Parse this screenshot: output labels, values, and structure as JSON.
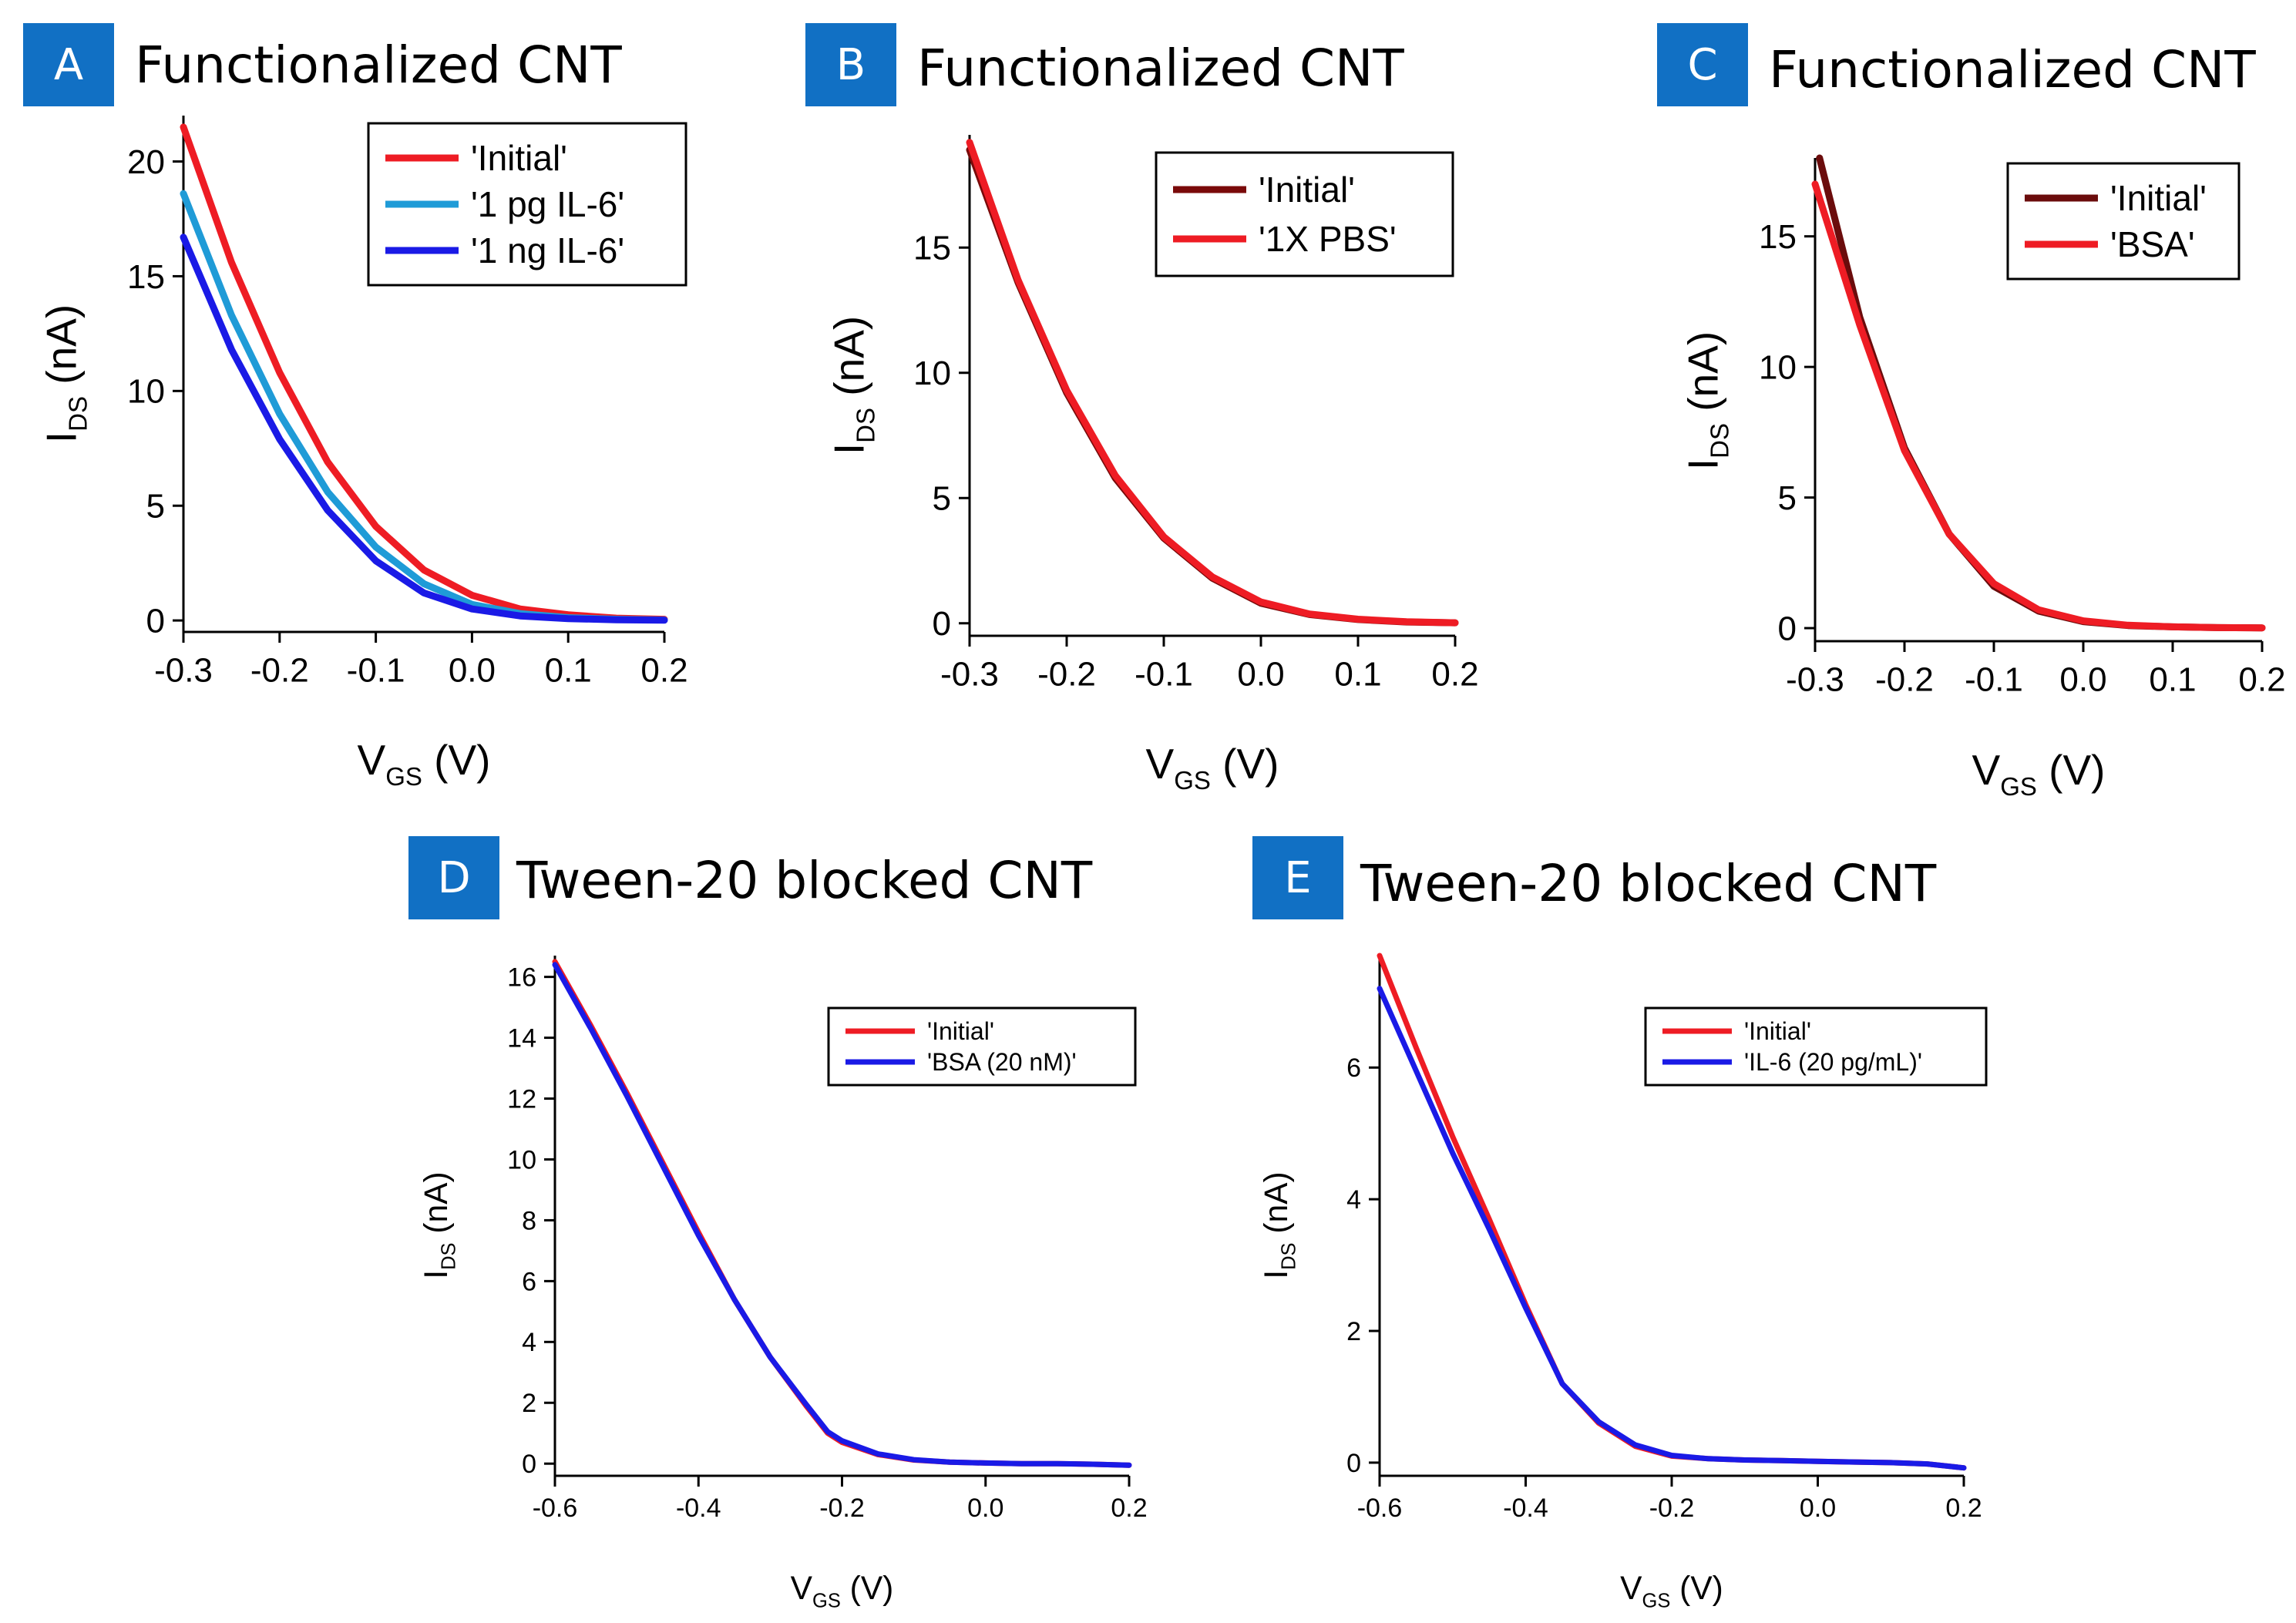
{
  "chart_data": [
    {
      "id": "A",
      "type": "line",
      "badge": "A",
      "title": "Functionalized CNT",
      "xlabel_main": "V",
      "xlabel_sub": "GS",
      "xlabel_unit": " (V)",
      "ylabel_main": "I",
      "ylabel_sub": "DS",
      "ylabel_unit": " (nA)",
      "xlim": [
        -0.3,
        0.2
      ],
      "ylim": [
        -0.5,
        22
      ],
      "xticks": [
        -0.3,
        -0.2,
        -0.1,
        0.0,
        0.1,
        0.2
      ],
      "xtick_labels": [
        "-0.3",
        "-0.2",
        "-0.1",
        "0.0",
        "0.1",
        "0.2"
      ],
      "yticks": [
        0,
        5,
        10,
        15,
        20
      ],
      "ytick_labels": [
        "0",
        "5",
        "10",
        "15",
        "20"
      ],
      "legend_position": "top-right",
      "series": [
        {
          "name": "'Initial'",
          "color": "#ee1c24",
          "x": [
            -0.3,
            -0.25,
            -0.2,
            -0.15,
            -0.1,
            -0.05,
            0.0,
            0.05,
            0.1,
            0.15,
            0.2
          ],
          "y": [
            21.5,
            15.6,
            10.8,
            6.9,
            4.1,
            2.2,
            1.1,
            0.5,
            0.25,
            0.1,
            0.05
          ]
        },
        {
          "name": "'1 pg IL-6'",
          "color": "#1f9bd7",
          "x": [
            -0.3,
            -0.25,
            -0.2,
            -0.15,
            -0.1,
            -0.05,
            0.0,
            0.05,
            0.1,
            0.15,
            0.2
          ],
          "y": [
            18.6,
            13.3,
            9.0,
            5.6,
            3.2,
            1.6,
            0.7,
            0.3,
            0.12,
            0.05,
            0.02
          ]
        },
        {
          "name": "'1 ng IL-6'",
          "color": "#1a1ae6",
          "x": [
            -0.3,
            -0.25,
            -0.2,
            -0.15,
            -0.1,
            -0.05,
            0.0,
            0.05,
            0.1,
            0.15,
            0.2
          ],
          "y": [
            16.7,
            11.8,
            7.9,
            4.8,
            2.6,
            1.2,
            0.5,
            0.2,
            0.08,
            0.03,
            0.01
          ]
        }
      ]
    },
    {
      "id": "B",
      "type": "line",
      "badge": "B",
      "title": "Functionalized CNT",
      "xlabel_main": "V",
      "xlabel_sub": "GS",
      "xlabel_unit": " (V)",
      "ylabel_main": "I",
      "ylabel_sub": "DS",
      "ylabel_unit": " (nA)",
      "xlim": [
        -0.3,
        0.2
      ],
      "ylim": [
        -0.5,
        19.5
      ],
      "xticks": [
        -0.3,
        -0.2,
        -0.1,
        0.0,
        0.1,
        0.2
      ],
      "xtick_labels": [
        "-0.3",
        "-0.2",
        "-0.1",
        "0.0",
        "0.1",
        "0.2"
      ],
      "yticks": [
        0,
        5,
        10,
        15
      ],
      "ytick_labels": [
        "0",
        "5",
        "10",
        "15"
      ],
      "legend_position": "top-right",
      "series": [
        {
          "name": "'Initial'",
          "color": "#7a0a0a",
          "x": [
            -0.3,
            -0.25,
            -0.2,
            -0.15,
            -0.1,
            -0.05,
            0.0,
            0.05,
            0.1,
            0.15,
            0.2
          ],
          "y": [
            18.9,
            13.6,
            9.2,
            5.8,
            3.4,
            1.8,
            0.8,
            0.35,
            0.15,
            0.05,
            0.02
          ]
        },
        {
          "name": "'1X PBS'",
          "color": "#ee1c24",
          "x": [
            -0.3,
            -0.25,
            -0.2,
            -0.15,
            -0.1,
            -0.05,
            0.0,
            0.05,
            0.1,
            0.15,
            0.2
          ],
          "y": [
            19.2,
            13.7,
            9.3,
            5.9,
            3.45,
            1.85,
            0.85,
            0.37,
            0.16,
            0.06,
            0.02
          ]
        }
      ]
    },
    {
      "id": "C",
      "type": "line",
      "badge": "C",
      "title": "Functionalized CNT",
      "xlabel_main": "V",
      "xlabel_sub": "GS",
      "xlabel_unit": " (V)",
      "ylabel_main": "I",
      "ylabel_sub": "DS",
      "ylabel_unit": " (nA)",
      "xlim": [
        -0.3,
        0.2
      ],
      "ylim": [
        -0.5,
        18
      ],
      "xticks": [
        -0.3,
        -0.2,
        -0.1,
        0.0,
        0.1,
        0.2
      ],
      "xtick_labels": [
        "-0.3",
        "-0.2",
        "-0.1",
        "0.0",
        "0.1",
        "0.2"
      ],
      "yticks": [
        0,
        5,
        10,
        15
      ],
      "ytick_labels": [
        "0",
        "5",
        "10",
        "15"
      ],
      "legend_position": "top-right",
      "series": [
        {
          "name": "'Initial'",
          "color": "#6b0c0c",
          "x": [
            -0.295,
            -0.25,
            -0.2,
            -0.15,
            -0.1,
            -0.05,
            0.0,
            0.05,
            0.1,
            0.15,
            0.2
          ],
          "y": [
            18.0,
            11.9,
            6.9,
            3.6,
            1.6,
            0.65,
            0.25,
            0.1,
            0.05,
            0.02,
            0.01
          ]
        },
        {
          "name": "'BSA'",
          "color": "#ee1c24",
          "x": [
            -0.3,
            -0.25,
            -0.2,
            -0.15,
            -0.1,
            -0.05,
            0.0,
            0.05,
            0.1,
            0.15,
            0.2
          ],
          "y": [
            17.0,
            11.6,
            6.8,
            3.6,
            1.7,
            0.7,
            0.28,
            0.11,
            0.05,
            0.02,
            0.01
          ]
        }
      ]
    },
    {
      "id": "D",
      "type": "line",
      "badge": "D",
      "title": "Tween-20 blocked CNT",
      "xlabel_main": "V",
      "xlabel_sub": "GS",
      "xlabel_unit": " (V)",
      "ylabel_main": "I",
      "ylabel_sub": "DS",
      "ylabel_unit": " (nA)",
      "xlim": [
        -0.6,
        0.2
      ],
      "ylim": [
        -0.4,
        16.7
      ],
      "xticks": [
        -0.6,
        -0.4,
        -0.2,
        0.0,
        0.2
      ],
      "xtick_labels": [
        "-0.6",
        "-0.4",
        "-0.2",
        "0.0",
        "0.2"
      ],
      "yticks": [
        0,
        2,
        4,
        6,
        8,
        10,
        12,
        14,
        16
      ],
      "ytick_labels": [
        "0",
        "2",
        "4",
        "6",
        "8",
        "10",
        "12",
        "14",
        "16"
      ],
      "legend_position": "top-right",
      "series": [
        {
          "name": "'Initial'",
          "color": "#ee1c24",
          "x": [
            -0.6,
            -0.55,
            -0.5,
            -0.45,
            -0.4,
            -0.35,
            -0.3,
            -0.25,
            -0.22,
            -0.2,
            -0.15,
            -0.1,
            -0.05,
            0.0,
            0.05,
            0.1,
            0.15,
            0.2
          ],
          "y": [
            16.5,
            14.4,
            12.2,
            9.9,
            7.6,
            5.4,
            3.5,
            1.9,
            1.0,
            0.7,
            0.3,
            0.12,
            0.05,
            0.02,
            0.0,
            0.0,
            -0.02,
            -0.05
          ]
        },
        {
          "name": "'BSA (20 nM)'",
          "color": "#1a1ae6",
          "x": [
            -0.6,
            -0.55,
            -0.5,
            -0.45,
            -0.4,
            -0.35,
            -0.3,
            -0.25,
            -0.22,
            -0.2,
            -0.15,
            -0.1,
            -0.05,
            0.0,
            0.05,
            0.1,
            0.15,
            0.2
          ],
          "y": [
            16.4,
            14.3,
            12.1,
            9.8,
            7.5,
            5.4,
            3.5,
            1.95,
            1.05,
            0.75,
            0.32,
            0.13,
            0.05,
            0.02,
            0.0,
            0.0,
            -0.02,
            -0.05
          ]
        }
      ]
    },
    {
      "id": "E",
      "type": "line",
      "badge": "E",
      "title": "Tween-20 blocked CNT",
      "xlabel_main": "V",
      "xlabel_sub": "GS",
      "xlabel_unit": " (V)",
      "ylabel_main": "I",
      "ylabel_sub": "DS",
      "ylabel_unit": " (nA)",
      "xlim": [
        -0.6,
        0.2
      ],
      "ylim": [
        -0.2,
        7.7
      ],
      "xticks": [
        -0.6,
        -0.4,
        -0.2,
        0.0,
        0.2
      ],
      "xtick_labels": [
        "-0.6",
        "-0.4",
        "-0.2",
        "0.0",
        "0.2"
      ],
      "yticks": [
        0,
        2,
        4,
        6
      ],
      "ytick_labels": [
        "0",
        "2",
        "4",
        "6"
      ],
      "legend_position": "top-right",
      "series": [
        {
          "name": "'Initial'",
          "color": "#ee1c24",
          "x": [
            -0.6,
            -0.55,
            -0.5,
            -0.45,
            -0.4,
            -0.35,
            -0.3,
            -0.25,
            -0.2,
            -0.15,
            -0.1,
            -0.05,
            0.0,
            0.05,
            0.1,
            0.15,
            0.2
          ],
          "y": [
            7.7,
            6.3,
            4.95,
            3.7,
            2.4,
            1.2,
            0.6,
            0.25,
            0.1,
            0.06,
            0.04,
            0.03,
            0.02,
            0.01,
            0.0,
            -0.02,
            -0.08
          ]
        },
        {
          "name": "'IL-6 (20 pg/mL)'",
          "color": "#1a1ae6",
          "x": [
            -0.6,
            -0.55,
            -0.5,
            -0.45,
            -0.4,
            -0.35,
            -0.3,
            -0.25,
            -0.2,
            -0.15,
            -0.1,
            -0.05,
            0.0,
            0.05,
            0.1,
            0.15,
            0.2
          ],
          "y": [
            7.2,
            5.95,
            4.7,
            3.55,
            2.35,
            1.2,
            0.62,
            0.27,
            0.11,
            0.06,
            0.04,
            0.03,
            0.02,
            0.01,
            0.0,
            -0.02,
            -0.08
          ]
        }
      ]
    }
  ]
}
